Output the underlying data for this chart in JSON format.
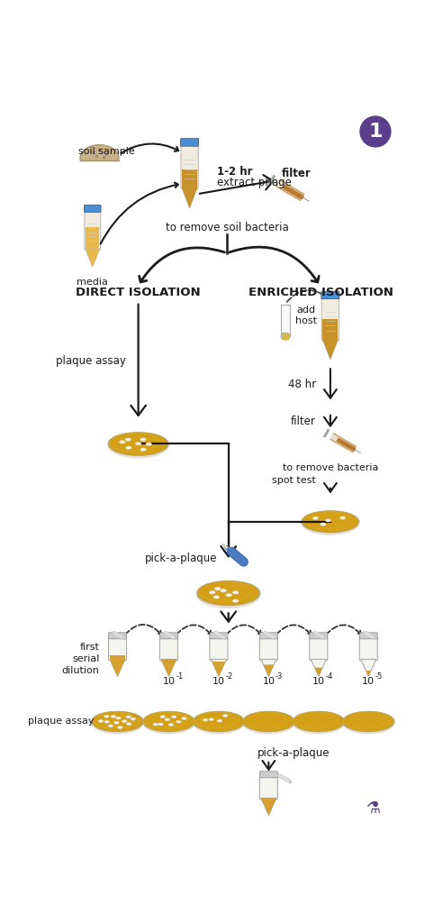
{
  "bg_color": "#ffffff",
  "text_color": "#1a1a1a",
  "arrow_color": "#1a1a1a",
  "tube_fill": "#c8922a",
  "tube_fill2": "#d4a030",
  "tube_light_fill": "#e8b84b",
  "plate_fill": "#d4a017",
  "plate_edge": "#b8922a",
  "tube_cap_color": "#4a90d9",
  "purple_circle": "#5b3f8c",
  "title_number": "1",
  "label_soil_sample": "soil sample",
  "label_media": "media",
  "label_12hr": "1-2 hr",
  "label_extract": "extract phage",
  "label_filter1": "filter",
  "label_remove_bacteria1": "to remove soil bacteria",
  "label_direct": "DIRECT ISOLATION",
  "label_enriched": "ENRICHED ISOLATION",
  "label_add_host": "add\nhost",
  "label_48hr": "48 hr",
  "label_filter2": "filter",
  "label_remove_bacteria2": "to remove bacteria",
  "label_spot_test": "spot test",
  "label_plaque_assay": "plaque assay",
  "label_pick_plaque": "pick-a-plaque",
  "label_first_serial": "first\nserial\ndilution",
  "label_plaque_assay2": "plaque assay",
  "label_pick_plaque2": "pick-a-plaque",
  "dilution_exponents": [
    "-1",
    "-2",
    "-3",
    "-4",
    "-5"
  ]
}
